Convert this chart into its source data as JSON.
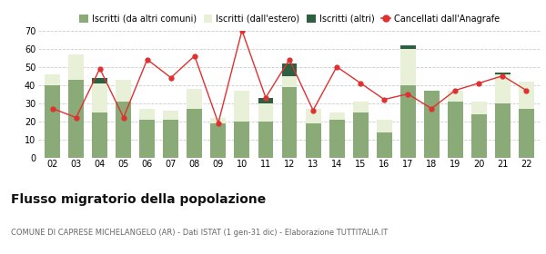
{
  "years": [
    "02",
    "03",
    "04",
    "05",
    "06",
    "07",
    "08",
    "09",
    "10",
    "11",
    "12",
    "13",
    "14",
    "15",
    "16",
    "17",
    "18",
    "19",
    "20",
    "21",
    "22"
  ],
  "iscritti_altri_comuni": [
    40,
    43,
    25,
    31,
    21,
    21,
    27,
    19,
    20,
    20,
    39,
    19,
    21,
    25,
    14,
    40,
    37,
    31,
    24,
    30,
    27
  ],
  "iscritti_estero": [
    6,
    14,
    16,
    12,
    6,
    5,
    11,
    3,
    17,
    10,
    6,
    8,
    4,
    6,
    7,
    20,
    0,
    6,
    7,
    16,
    15
  ],
  "iscritti_altri": [
    0,
    0,
    3,
    0,
    0,
    0,
    0,
    0,
    0,
    3,
    7,
    0,
    0,
    0,
    0,
    2,
    0,
    0,
    0,
    1,
    0
  ],
  "cancellati": [
    27,
    22,
    49,
    22,
    54,
    44,
    56,
    19,
    70,
    33,
    54,
    26,
    50,
    41,
    32,
    35,
    27,
    37,
    41,
    45,
    37
  ],
  "color_altri_comuni": "#8aaa78",
  "color_estero": "#e8f0d8",
  "color_altri": "#2d6040",
  "color_cancellati": "#e03030",
  "title": "Flusso migratorio della popolazione",
  "subtitle": "COMUNE DI CAPRESE MICHELANGELO (AR) - Dati ISTAT (1 gen-31 dic) - Elaborazione TUTTITALIA.IT",
  "legend_labels": [
    "Iscritti (da altri comuni)",
    "Iscritti (dall'estero)",
    "Iscritti (altri)",
    "Cancellati dall'Anagrafe"
  ],
  "ylim": [
    0,
    70
  ],
  "yticks": [
    0,
    10,
    20,
    30,
    40,
    50,
    60,
    70
  ],
  "bg_color": "#ffffff",
  "grid_color": "#cccccc"
}
